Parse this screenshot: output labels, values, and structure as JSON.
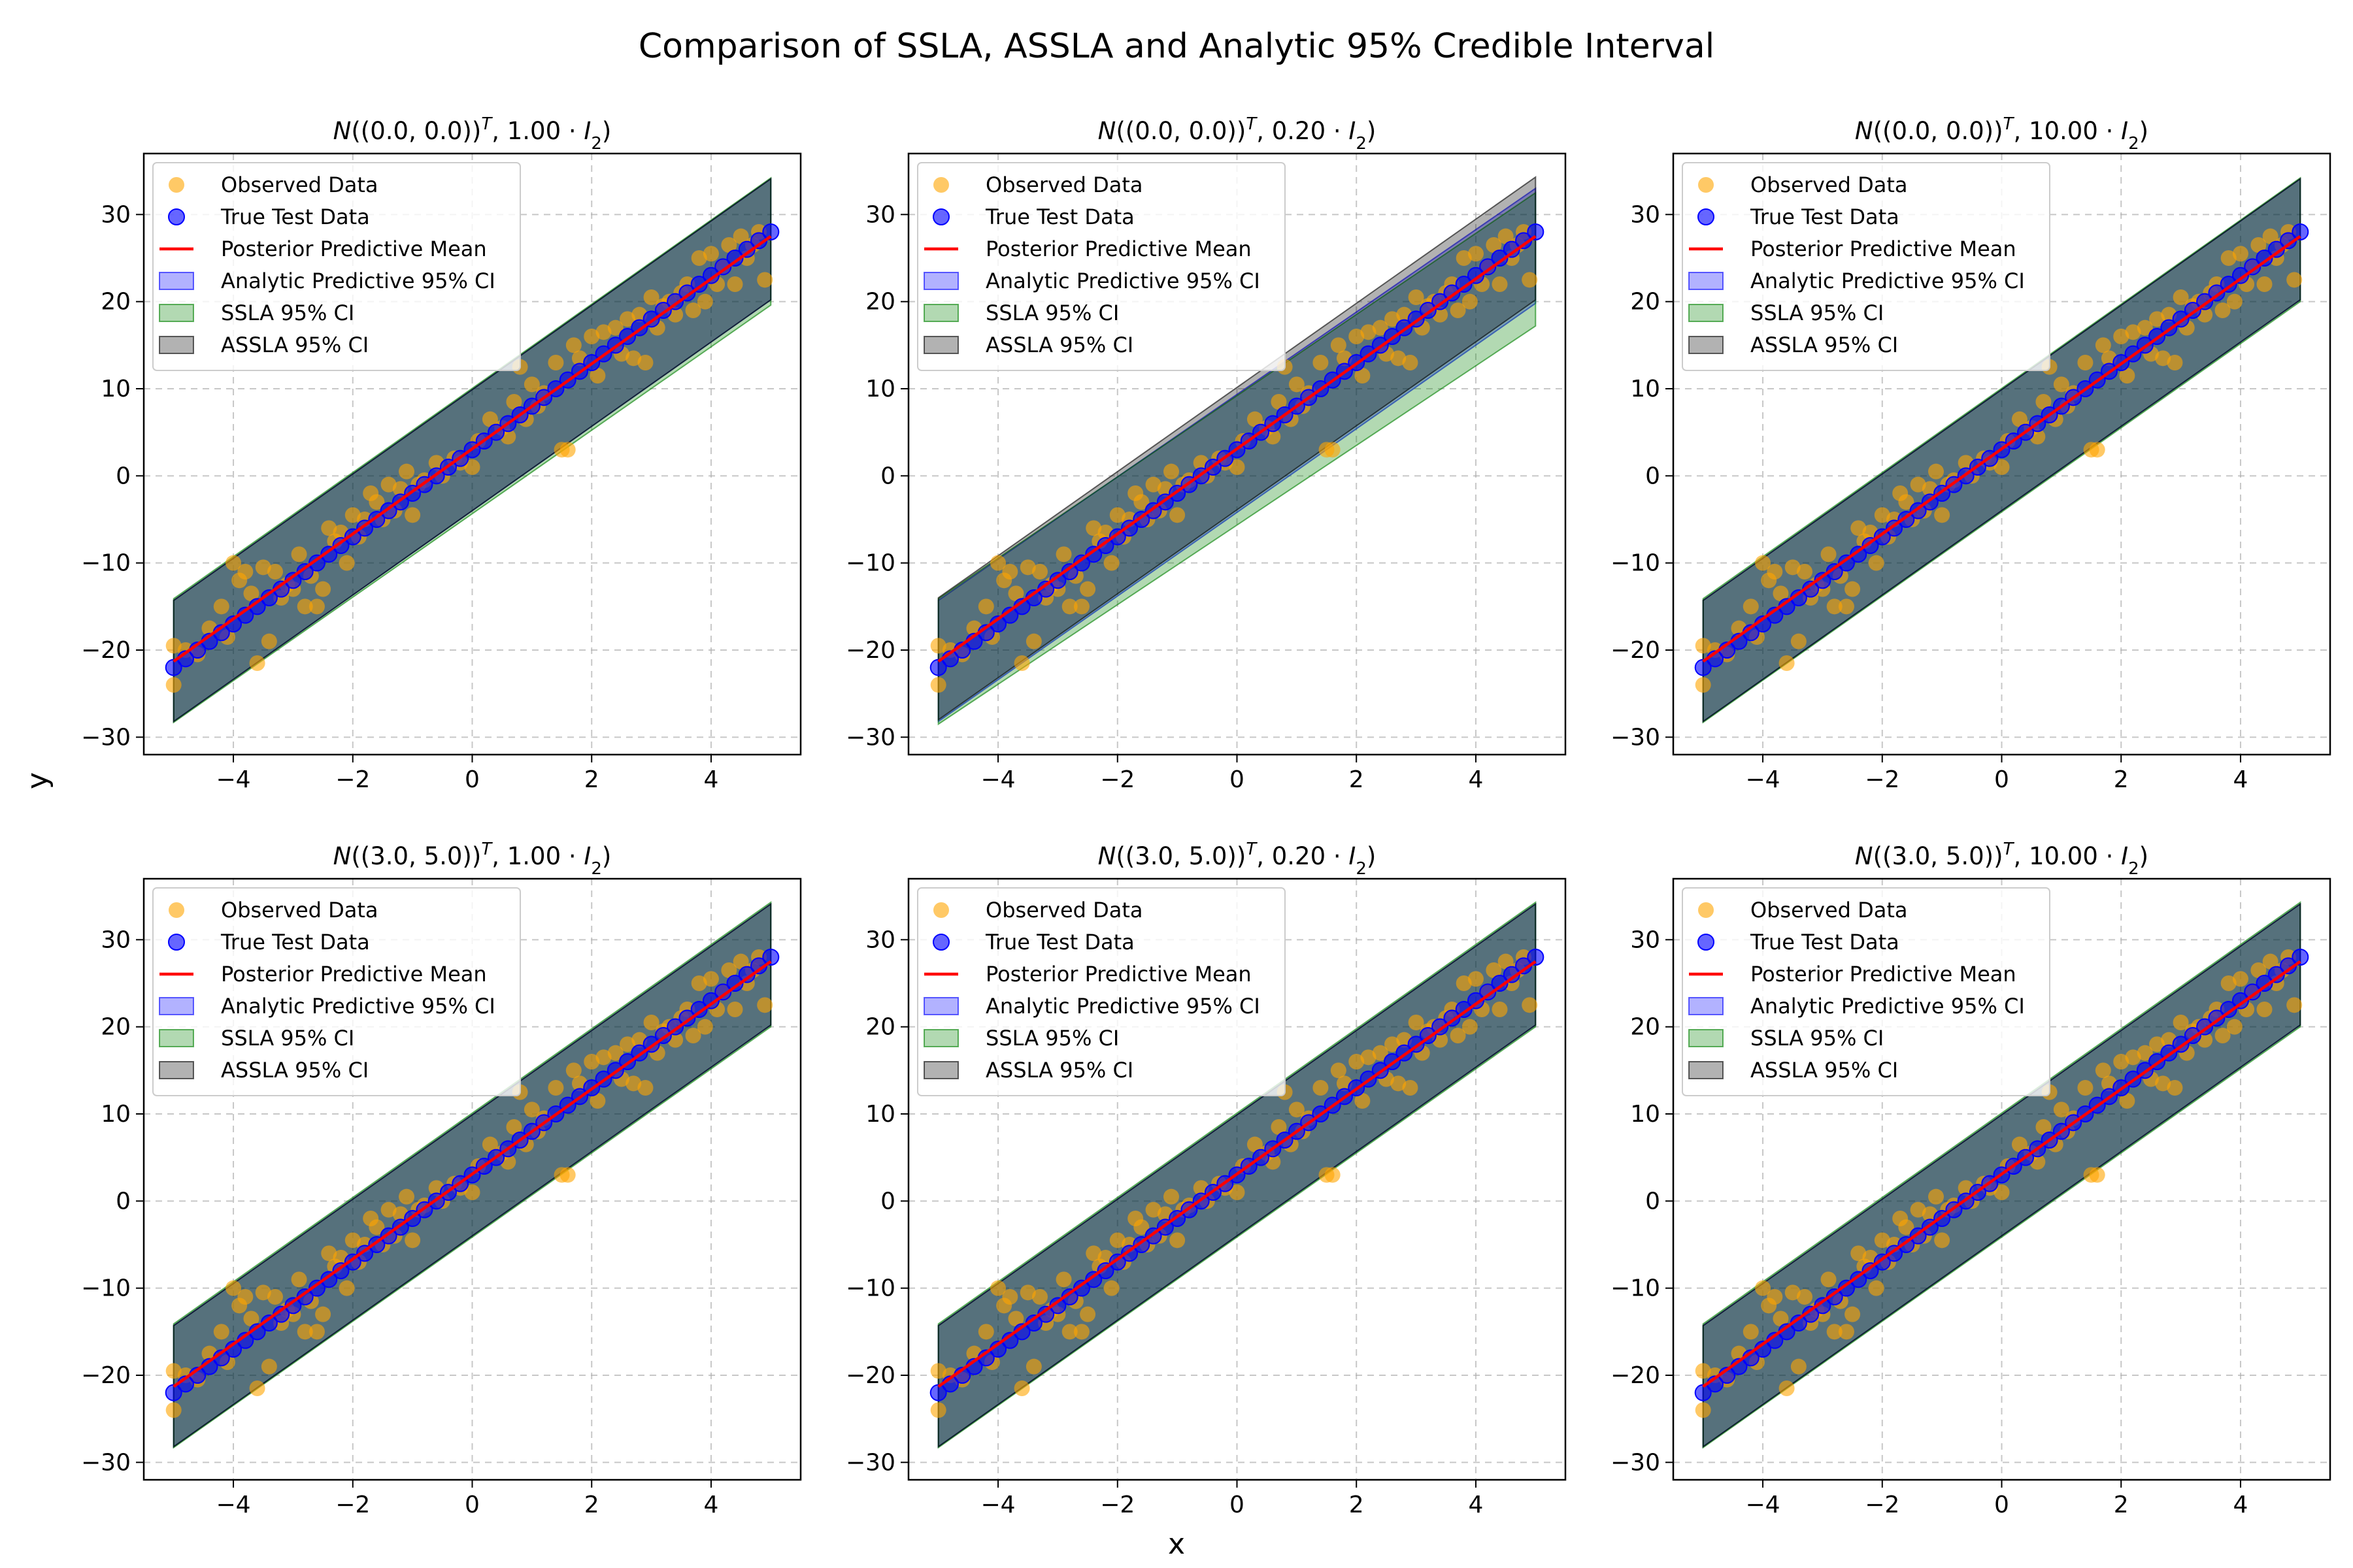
{
  "figure": {
    "suptitle": "Comparison of SSLA, ASSLA and Analytic 95% Credible Interval",
    "xlabel": "x",
    "ylabel": "y"
  },
  "legend_entries": [
    {
      "key": "observed",
      "label": "Observed Data",
      "kind": "marker",
      "color": "#ffa500"
    },
    {
      "key": "test",
      "label": "True Test Data",
      "kind": "marker",
      "color": "#0000ff"
    },
    {
      "key": "mean",
      "label": "Posterior Predictive Mean",
      "kind": "line",
      "color": "#ff0000"
    },
    {
      "key": "analytic",
      "label": "Analytic Predictive 95% CI",
      "kind": "patch",
      "color": "#0000ff"
    },
    {
      "key": "ssla",
      "label": "SSLA 95% CI",
      "kind": "patch",
      "color": "#008000"
    },
    {
      "key": "assla",
      "label": "ASSLA 95% CI",
      "kind": "patch",
      "color": "#000000"
    }
  ],
  "chart_data": [
    {
      "type": "scatter",
      "title": "N((0.0, 0.0)^T, 1.00 · I_2)",
      "prior_mean": "(0.0, 0.0)",
      "prior_scale": "1.00",
      "xlim": [
        -5.5,
        5.5
      ],
      "ylim": [
        -32,
        37
      ],
      "xticks": [
        -4,
        -2,
        0,
        2,
        4
      ],
      "yticks": [
        -30,
        -20,
        -10,
        0,
        10,
        20,
        30
      ],
      "grid": true,
      "legend_position": "upper left",
      "mean_line": {
        "x": [
          -5,
          5
        ],
        "y": [
          -21.3,
          27.5
        ]
      },
      "analytic_ci": {
        "x": [
          -5,
          5
        ],
        "lower": [
          -28.2,
          20.2
        ],
        "upper": [
          -14.3,
          34.1
        ]
      },
      "ssla_ci": {
        "x": [
          -5,
          5
        ],
        "lower": [
          -28.3,
          19.6
        ],
        "upper": [
          -14.1,
          34.2
        ]
      },
      "assla_ci": {
        "x": [
          -5,
          5
        ],
        "lower": [
          -28.2,
          20.2
        ],
        "upper": [
          -14.3,
          34.1
        ]
      }
    },
    {
      "type": "scatter",
      "title": "N((0.0, 0.0)^T, 0.20 · I_2)",
      "prior_mean": "(0.0, 0.0)",
      "prior_scale": "0.20",
      "xlim": [
        -5.5,
        5.5
      ],
      "ylim": [
        -32,
        37
      ],
      "xticks": [
        -4,
        -2,
        0,
        2,
        4
      ],
      "yticks": [
        -30,
        -20,
        -10,
        0,
        10,
        20,
        30
      ],
      "grid": true,
      "legend_position": "upper left",
      "mean_line": {
        "x": [
          -5,
          5
        ],
        "y": [
          -21.3,
          27.5
        ]
      },
      "analytic_ci": {
        "x": [
          -5,
          5
        ],
        "lower": [
          -28.2,
          19.8
        ],
        "upper": [
          -14.3,
          33.0
        ]
      },
      "ssla_ci": {
        "x": [
          -5,
          5
        ],
        "lower": [
          -28.5,
          17.2
        ],
        "upper": [
          -14.1,
          32.5
        ]
      },
      "assla_ci": {
        "x": [
          -5,
          5
        ],
        "lower": [
          -28.0,
          20.2
        ],
        "upper": [
          -14.0,
          34.3
        ]
      }
    },
    {
      "type": "scatter",
      "title": "N((0.0, 0.0)^T, 10.00 · I_2)",
      "prior_mean": "(0.0, 0.0)",
      "prior_scale": "10.00",
      "xlim": [
        -5.5,
        5.5
      ],
      "ylim": [
        -32,
        37
      ],
      "xticks": [
        -4,
        -2,
        0,
        2,
        4
      ],
      "yticks": [
        -30,
        -20,
        -10,
        0,
        10,
        20,
        30
      ],
      "grid": true,
      "legend_position": "upper left",
      "mean_line": {
        "x": [
          -5,
          5
        ],
        "y": [
          -21.3,
          27.5
        ]
      },
      "analytic_ci": {
        "x": [
          -5,
          5
        ],
        "lower": [
          -28.2,
          20.2
        ],
        "upper": [
          -14.3,
          34.1
        ]
      },
      "ssla_ci": {
        "x": [
          -5,
          5
        ],
        "lower": [
          -28.3,
          20.0
        ],
        "upper": [
          -14.1,
          34.2
        ]
      },
      "assla_ci": {
        "x": [
          -5,
          5
        ],
        "lower": [
          -28.2,
          20.2
        ],
        "upper": [
          -14.3,
          34.1
        ]
      }
    },
    {
      "type": "scatter",
      "title": "N((3.0, 5.0)^T, 1.00 · I_2)",
      "prior_mean": "(3.0, 5.0)",
      "prior_scale": "1.00",
      "xlim": [
        -5.5,
        5.5
      ],
      "ylim": [
        -32,
        37
      ],
      "xticks": [
        -4,
        -2,
        0,
        2,
        4
      ],
      "yticks": [
        -30,
        -20,
        -10,
        0,
        10,
        20,
        30
      ],
      "grid": true,
      "legend_position": "upper left",
      "mean_line": {
        "x": [
          -5,
          5
        ],
        "y": [
          -21.3,
          27.5
        ]
      },
      "analytic_ci": {
        "x": [
          -5,
          5
        ],
        "lower": [
          -28.2,
          20.2
        ],
        "upper": [
          -14.3,
          34.1
        ]
      },
      "ssla_ci": {
        "x": [
          -5,
          5
        ],
        "lower": [
          -28.3,
          20.0
        ],
        "upper": [
          -14.1,
          34.3
        ]
      },
      "assla_ci": {
        "x": [
          -5,
          5
        ],
        "lower": [
          -28.2,
          20.2
        ],
        "upper": [
          -14.3,
          34.1
        ]
      }
    },
    {
      "type": "scatter",
      "title": "N((3.0, 5.0)^T, 0.20 · I_2)",
      "prior_mean": "(3.0, 5.0)",
      "prior_scale": "0.20",
      "xlim": [
        -5.5,
        5.5
      ],
      "ylim": [
        -32,
        37
      ],
      "xticks": [
        -4,
        -2,
        0,
        2,
        4
      ],
      "yticks": [
        -30,
        -20,
        -10,
        0,
        10,
        20,
        30
      ],
      "grid": true,
      "legend_position": "upper left",
      "mean_line": {
        "x": [
          -5,
          5
        ],
        "y": [
          -21.3,
          27.5
        ]
      },
      "analytic_ci": {
        "x": [
          -5,
          5
        ],
        "lower": [
          -28.2,
          20.2
        ],
        "upper": [
          -14.3,
          34.1
        ]
      },
      "ssla_ci": {
        "x": [
          -5,
          5
        ],
        "lower": [
          -28.3,
          20.0
        ],
        "upper": [
          -14.1,
          34.3
        ]
      },
      "assla_ci": {
        "x": [
          -5,
          5
        ],
        "lower": [
          -28.2,
          20.2
        ],
        "upper": [
          -14.3,
          34.1
        ]
      }
    },
    {
      "type": "scatter",
      "title": "N((3.0, 5.0)^T, 10.00 · I_2)",
      "prior_mean": "(3.0, 5.0)",
      "prior_scale": "10.00",
      "xlim": [
        -5.5,
        5.5
      ],
      "ylim": [
        -32,
        37
      ],
      "xticks": [
        -4,
        -2,
        0,
        2,
        4
      ],
      "yticks": [
        -30,
        -20,
        -10,
        0,
        10,
        20,
        30
      ],
      "grid": true,
      "legend_position": "upper left",
      "mean_line": {
        "x": [
          -5,
          5
        ],
        "y": [
          -21.3,
          27.5
        ]
      },
      "analytic_ci": {
        "x": [
          -5,
          5
        ],
        "lower": [
          -28.2,
          20.2
        ],
        "upper": [
          -14.3,
          34.1
        ]
      },
      "ssla_ci": {
        "x": [
          -5,
          5
        ],
        "lower": [
          -28.3,
          20.0
        ],
        "upper": [
          -14.1,
          34.3
        ]
      },
      "assla_ci": {
        "x": [
          -5,
          5
        ],
        "lower": [
          -28.2,
          20.2
        ],
        "upper": [
          -14.3,
          34.1
        ]
      }
    }
  ],
  "observed_points": {
    "x": [
      -5.0,
      -5.0,
      -4.8,
      -4.6,
      -4.4,
      -4.2,
      -4.1,
      -4.0,
      -3.9,
      -3.8,
      -3.7,
      -3.6,
      -3.5,
      -3.4,
      -3.3,
      -3.2,
      -3.1,
      -3.0,
      -2.9,
      -2.8,
      -2.7,
      -2.6,
      -2.5,
      -2.4,
      -2.3,
      -2.2,
      -2.1,
      -2.0,
      -1.9,
      -1.8,
      -1.7,
      -1.6,
      -1.5,
      -1.4,
      -1.3,
      -1.2,
      -1.1,
      -1.0,
      -0.9,
      -0.8,
      -0.6,
      -0.5,
      -0.3,
      -0.2,
      0.0,
      0.1,
      0.3,
      0.5,
      0.6,
      0.7,
      0.8,
      0.9,
      1.0,
      1.1,
      1.2,
      1.4,
      1.5,
      1.6,
      1.7,
      1.8,
      2.0,
      2.1,
      2.2,
      2.4,
      2.5,
      2.6,
      2.7,
      2.8,
      2.9,
      3.0,
      3.1,
      3.2,
      3.3,
      3.4,
      3.5,
      3.6,
      3.7,
      3.8,
      3.9,
      4.0,
      4.1,
      4.2,
      4.3,
      4.4,
      4.5,
      4.6,
      4.7,
      4.8,
      4.9
    ],
    "y": [
      -19.5,
      -24.0,
      -20.0,
      -20.5,
      -17.5,
      -15.0,
      -18.5,
      -10.0,
      -12.0,
      -11.0,
      -13.5,
      -21.5,
      -10.5,
      -19.0,
      -11.0,
      -14.0,
      -12.5,
      -13.0,
      -9.0,
      -15.0,
      -11.5,
      -15.0,
      -13.0,
      -6.0,
      -7.5,
      -6.5,
      -10.0,
      -4.5,
      -7.0,
      -5.0,
      -2.0,
      -3.0,
      -5.0,
      -1.0,
      -4.0,
      -1.5,
      0.5,
      -4.5,
      -1.0,
      -0.5,
      1.5,
      0.0,
      2.0,
      1.5,
      1.0,
      4.0,
      6.5,
      5.5,
      4.5,
      8.5,
      12.5,
      6.5,
      10.5,
      8.0,
      9.5,
      13.0,
      3.0,
      3.0,
      15.0,
      13.5,
      16.0,
      11.5,
      16.5,
      17.0,
      14.0,
      18.0,
      13.5,
      18.5,
      13.0,
      20.5,
      17.0,
      19.5,
      20.0,
      18.5,
      21.0,
      22.0,
      19.0,
      25.0,
      20.0,
      25.5,
      22.0,
      24.0,
      26.5,
      22.0,
      27.5,
      25.0,
      26.5,
      28.0,
      22.5
    ]
  },
  "test_points": {
    "x": [
      -5.0,
      -4.8,
      -4.6,
      -4.4,
      -4.2,
      -4.0,
      -3.8,
      -3.6,
      -3.4,
      -3.2,
      -3.0,
      -2.8,
      -2.6,
      -2.4,
      -2.2,
      -2.0,
      -1.8,
      -1.6,
      -1.4,
      -1.2,
      -1.0,
      -0.8,
      -0.6,
      -0.4,
      -0.2,
      0.0,
      0.2,
      0.4,
      0.6,
      0.8,
      1.0,
      1.2,
      1.4,
      1.6,
      1.8,
      2.0,
      2.2,
      2.4,
      2.6,
      2.8,
      3.0,
      3.2,
      3.4,
      3.6,
      3.8,
      4.0,
      4.2,
      4.4,
      4.6,
      4.8,
      5.0
    ],
    "y": [
      -22.0,
      -21.0,
      -20.0,
      -19.0,
      -18.0,
      -17.0,
      -16.0,
      -15.0,
      -14.0,
      -13.0,
      -12.0,
      -11.0,
      -10.0,
      -9.0,
      -8.0,
      -7.0,
      -6.0,
      -5.0,
      -4.0,
      -3.0,
      -2.0,
      -1.0,
      0.0,
      1.0,
      2.0,
      3.0,
      4.0,
      5.0,
      6.0,
      7.0,
      8.0,
      9.0,
      10.0,
      11.0,
      12.0,
      13.0,
      14.0,
      15.0,
      16.0,
      17.0,
      18.0,
      19.0,
      20.0,
      21.0,
      22.0,
      23.0,
      24.0,
      25.0,
      26.0,
      27.0,
      28.0
    ]
  },
  "colors": {
    "observed": "#ffa500",
    "test": "#0000ff",
    "mean": "#ff0000",
    "analytic": "#0000ff",
    "ssla": "#008000",
    "assla": "#000000",
    "grid": "#b0b0b0"
  }
}
